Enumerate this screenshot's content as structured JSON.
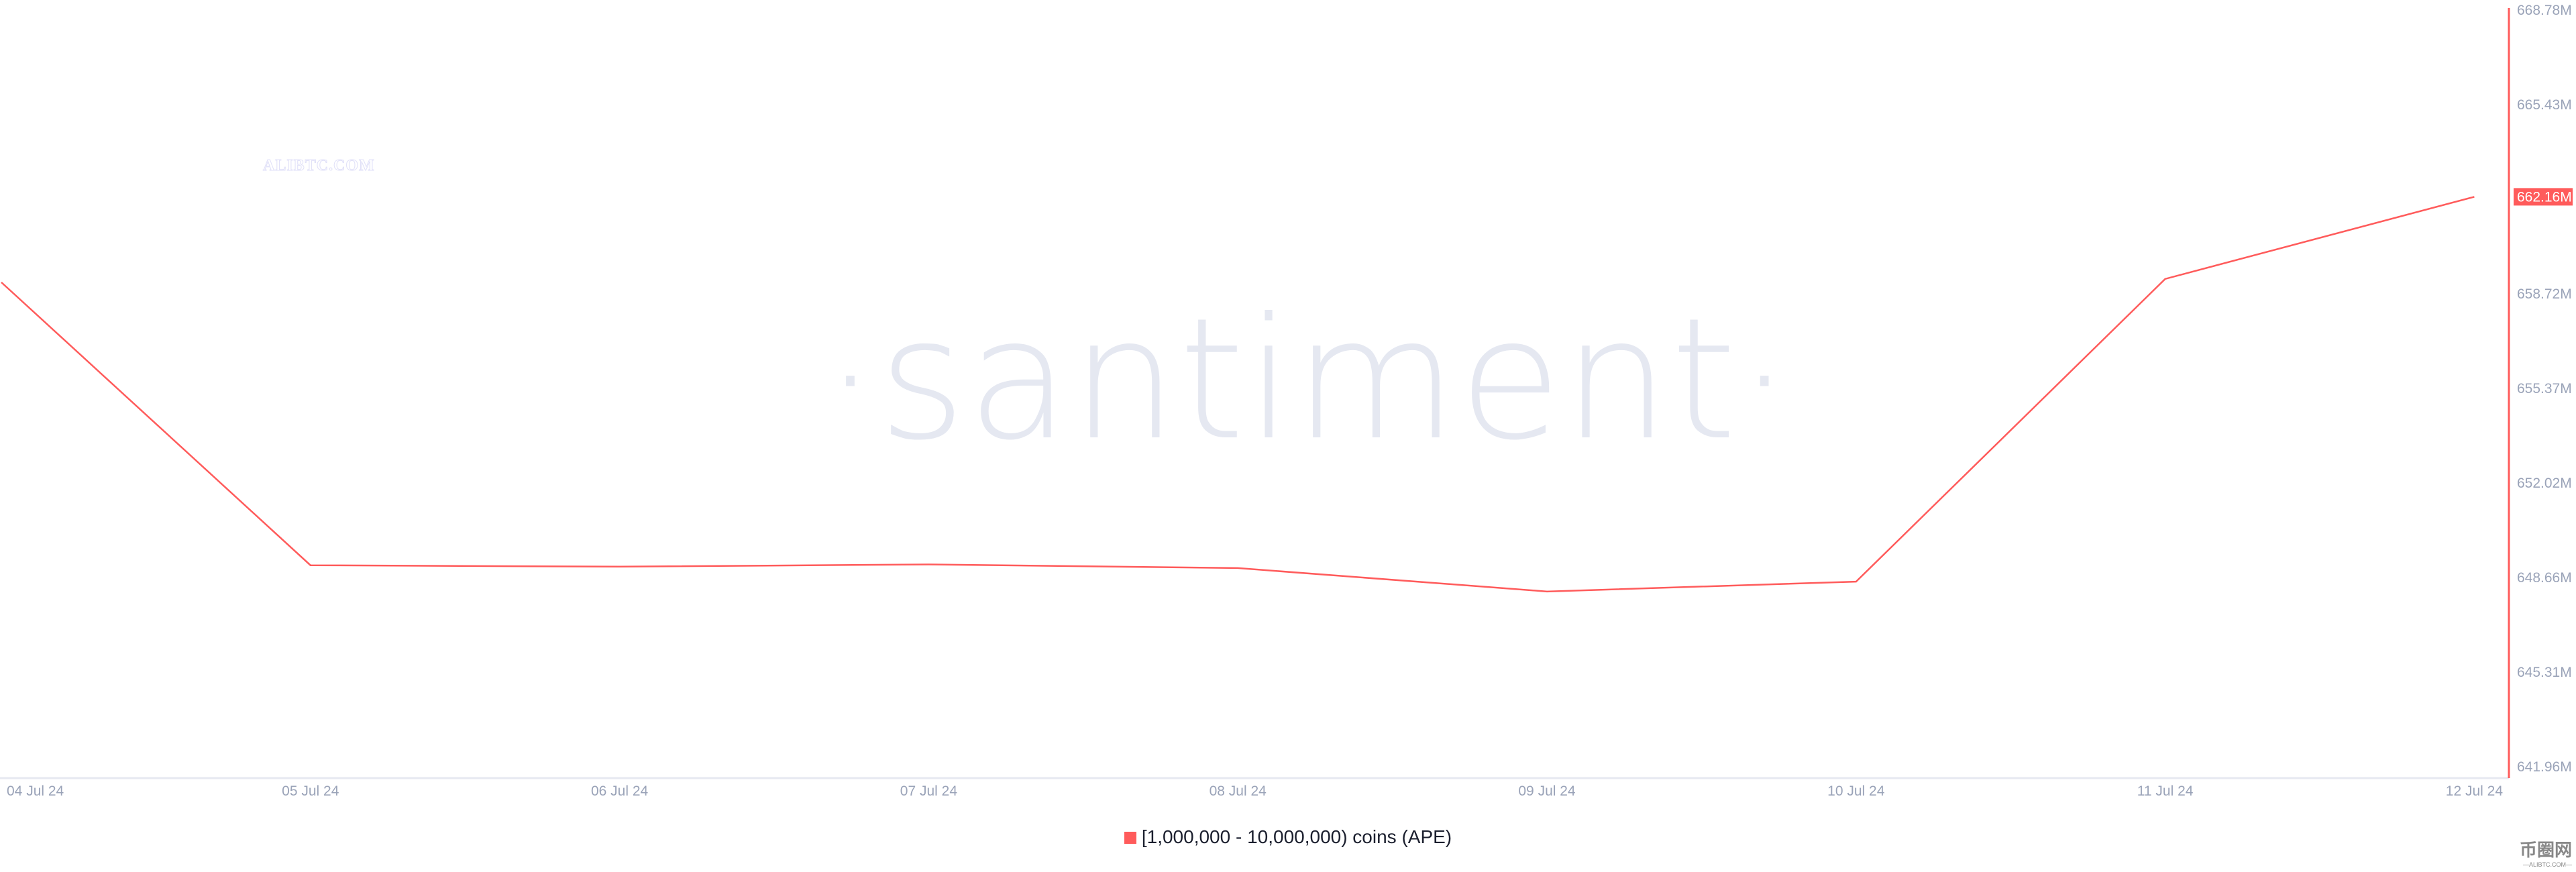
{
  "chart_data": {
    "type": "line",
    "title": "",
    "xlabel": "",
    "ylabel": "",
    "x": [
      "04 Jul 24",
      "05 Jul 24",
      "06 Jul 24",
      "07 Jul 24",
      "08 Jul 24",
      "09 Jul 24",
      "10 Jul 24",
      "11 Jul 24",
      "12 Jul 24"
    ],
    "series": [
      {
        "name": "[1,000,000 - 10,000,000) coins (APE)",
        "color": "#ff5b5b",
        "values": [
          659.13,
          649.1,
          649.05,
          649.13,
          649.0,
          648.17,
          648.52,
          659.25,
          662.16
        ]
      }
    ],
    "yticks": [
      "641.96M",
      "645.31M",
      "648.66M",
      "652.02M",
      "655.37M",
      "658.72M",
      "662.16M",
      "665.43M",
      "668.78M"
    ],
    "ytick_values": [
      641.96,
      645.31,
      648.66,
      652.02,
      655.37,
      658.72,
      662.16,
      665.43,
      668.78
    ],
    "ylim": [
      641.96,
      668.78
    ],
    "y_unit": "M",
    "y_axis_position": "right",
    "last_value_label": "662.16M",
    "grid": false,
    "legend_position": "bottom-center"
  },
  "watermarks": {
    "main": "·santiment·",
    "top_left": "ALIBTC.COM",
    "logo": "币圈网",
    "logo_sub": "—ALIBTC.COM—"
  }
}
